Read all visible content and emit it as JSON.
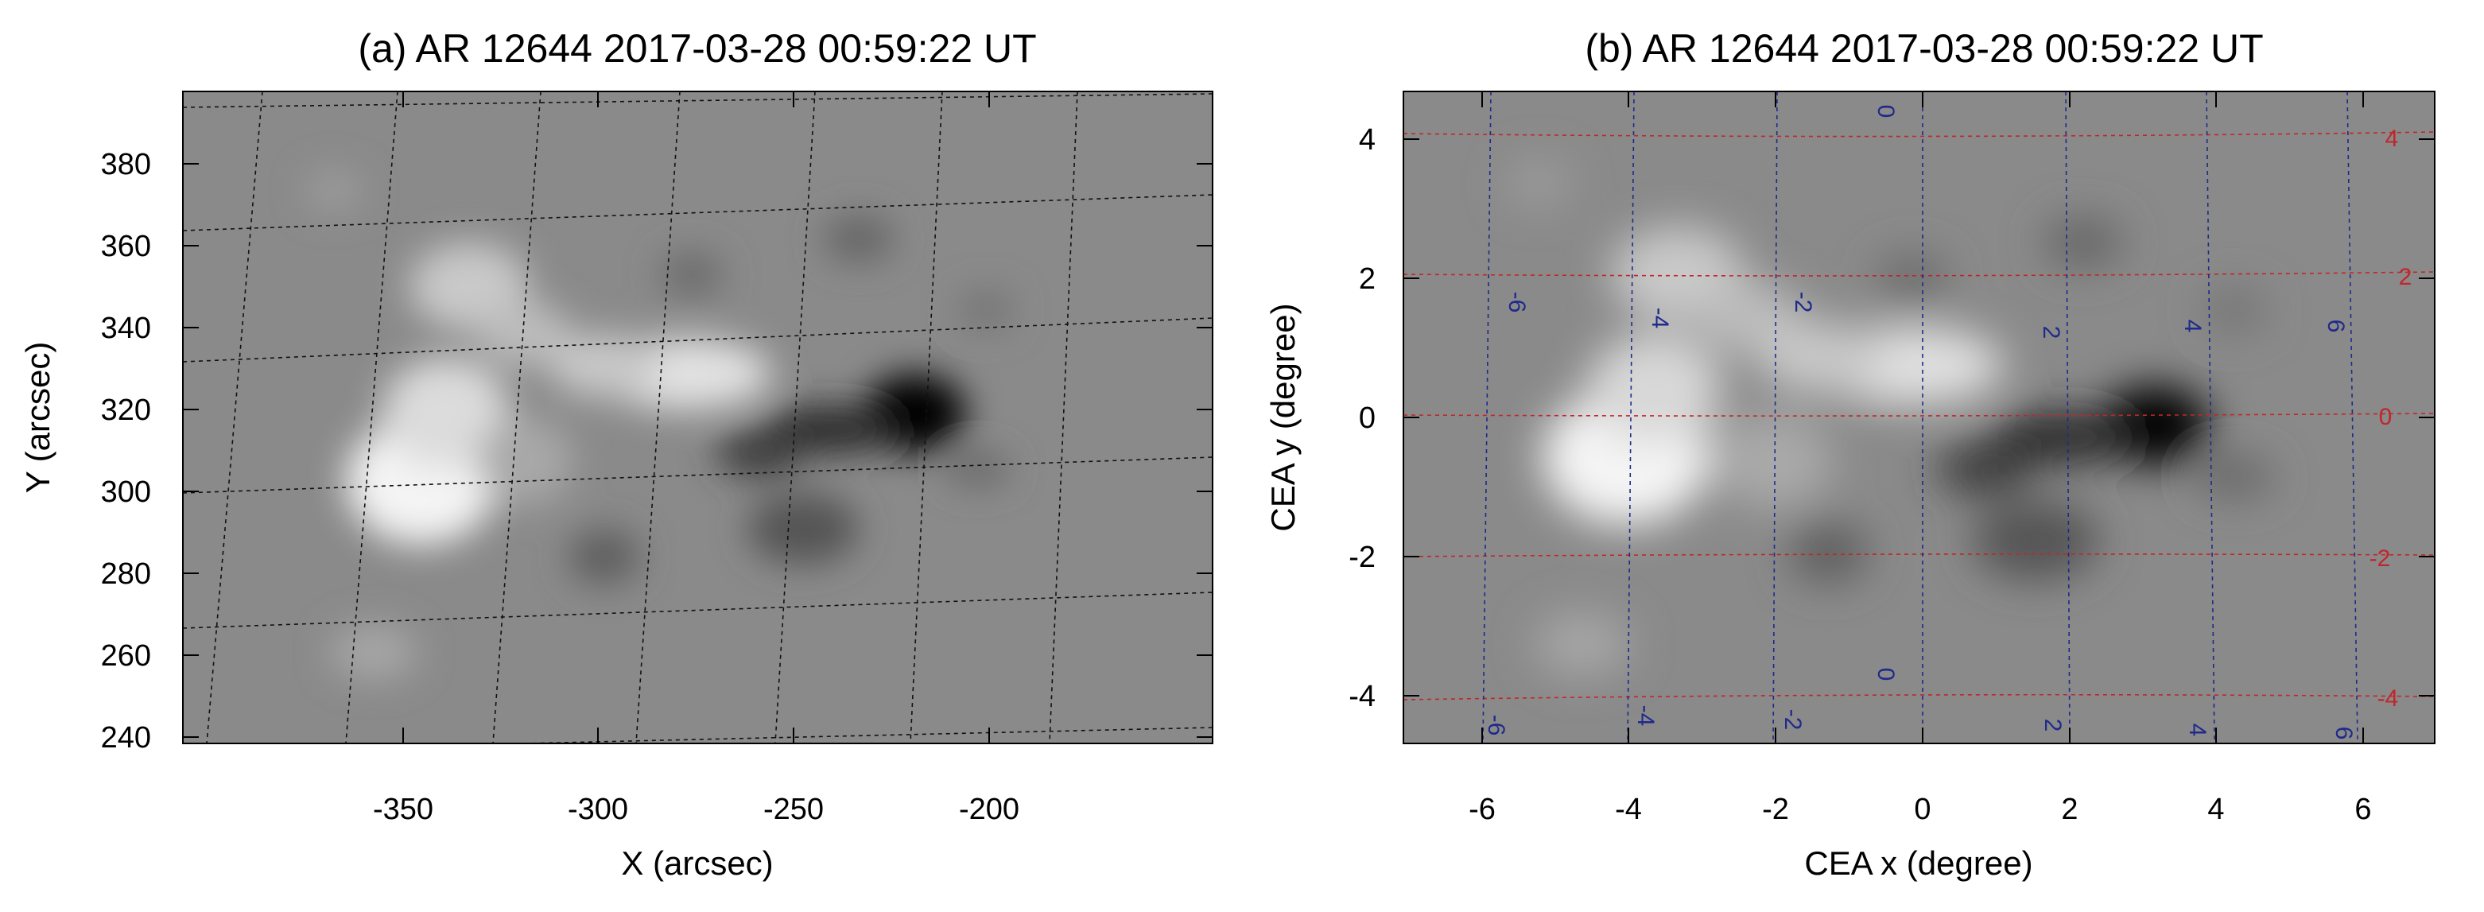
{
  "panel_a": {
    "title": "(a) AR 12644  2017-03-28 00:59:22 UT",
    "xlabel": "X (arcsec)",
    "ylabel": "Y (arcsec)",
    "xticks": [
      "-350",
      "-300",
      "-250",
      "-200"
    ],
    "yticks": [
      "380",
      "360",
      "340",
      "320",
      "300",
      "280",
      "260",
      "240"
    ]
  },
  "panel_b": {
    "title": "(b) AR 12644  2017-03-28 00:59:22 UT",
    "xlabel": "CEA x (degree)",
    "ylabel": "CEA y (degree)",
    "xticks": [
      "-6",
      "-4",
      "-2",
      "0",
      "2",
      "4",
      "6"
    ],
    "yticks": [
      "4",
      "2",
      "0",
      "-2",
      "-4"
    ],
    "lon_labels": [
      "-6",
      "-4",
      "-2",
      "0",
      "2",
      "4",
      "6"
    ],
    "lat_labels": [
      "4",
      "2",
      "0",
      "-2",
      "-4"
    ]
  },
  "colors": {
    "grid_a": "#111111",
    "lon_grid": "#1f2a8a",
    "lat_grid": "#c0262b",
    "background_field": "#8a8a8a"
  }
}
